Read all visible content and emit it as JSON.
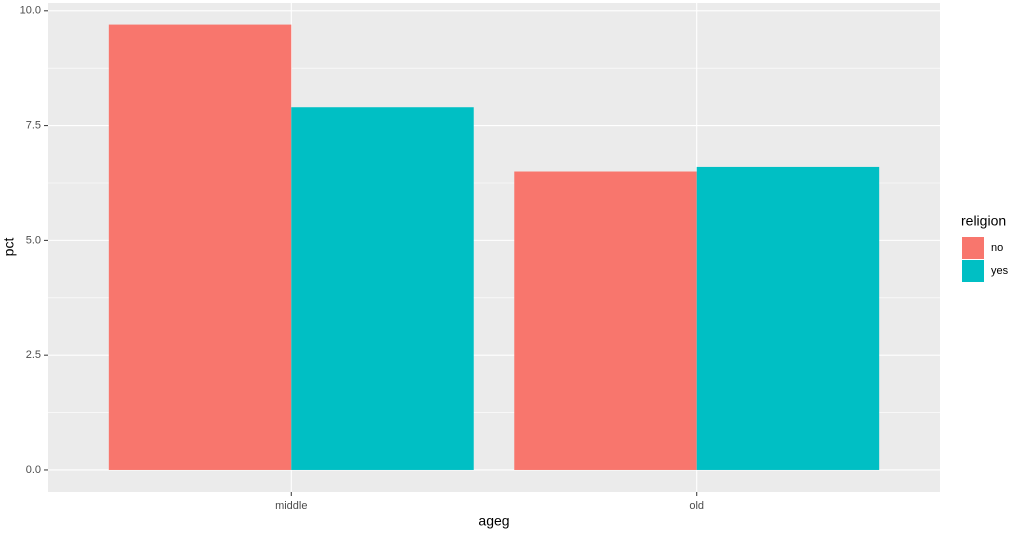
{
  "chart_data": {
    "type": "bar",
    "categories": [
      "middle",
      "old"
    ],
    "series": [
      {
        "name": "no",
        "color": "#f8766d",
        "values": [
          9.7,
          6.5
        ]
      },
      {
        "name": "yes",
        "color": "#00bfc4",
        "values": [
          7.9,
          6.6
        ]
      }
    ],
    "x_label": "ageg",
    "y_label": "pct",
    "legend_title": "religion",
    "ylim": [
      -0.48,
      10.17
    ],
    "yticks": [
      {
        "value": 0,
        "label": "0.0"
      },
      {
        "value": 2.5,
        "label": "2.5"
      },
      {
        "value": 5,
        "label": "5.0"
      },
      {
        "value": 7.5,
        "label": "7.5"
      },
      {
        "value": 10,
        "label": "10.0"
      }
    ],
    "grid": true,
    "legend_position": "right"
  }
}
